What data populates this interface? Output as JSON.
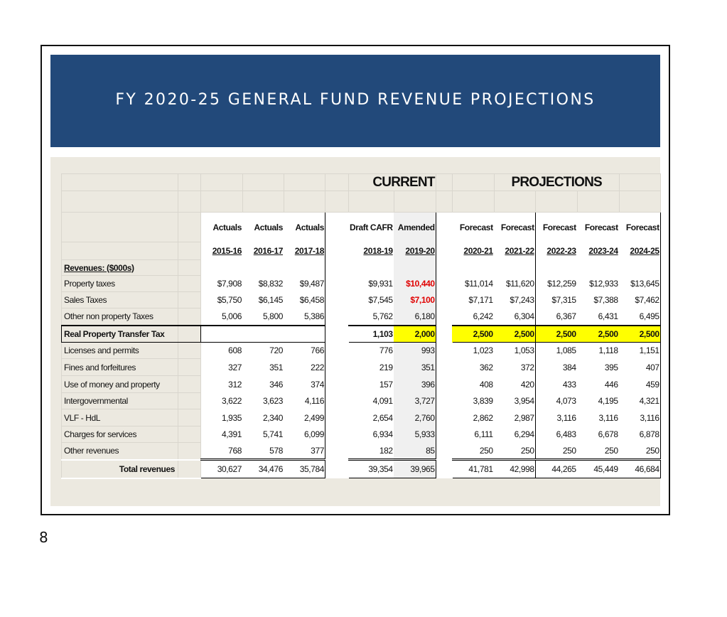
{
  "slide": {
    "title": "FY 2020-25 GENERAL FUND REVENUE PROJECTIONS",
    "page_number": "8"
  },
  "table": {
    "section_headers": {
      "current": "CURRENT",
      "projections": "PROJECTIONS"
    },
    "columns": [
      {
        "type": "Actuals",
        "year": "2015-16"
      },
      {
        "type": "Actuals",
        "year": "2016-17"
      },
      {
        "type": "Actuals",
        "year": "2017-18"
      },
      {
        "type": "Draft CAFR",
        "year": "2018-19"
      },
      {
        "type": "Amended",
        "year": "2019-20"
      },
      {
        "type": "Forecast",
        "year": "2020-21"
      },
      {
        "type": "Forecast",
        "year": "2021-22"
      },
      {
        "type": "Forecast",
        "year": "2022-23"
      },
      {
        "type": "Forecast",
        "year": "2023-24"
      },
      {
        "type": "Forecast",
        "year": "2024-25"
      }
    ],
    "section_label": "Revenues: ($000s)",
    "rows": [
      {
        "label": "Property taxes",
        "values": [
          "$7,908",
          "$8,832",
          "$9,487",
          "$9,931",
          "$10,440",
          "$11,014",
          "$11,620",
          "$12,259",
          "$12,933",
          "$13,645"
        ]
      },
      {
        "label": "Sales Taxes",
        "values": [
          "$5,750",
          "$6,145",
          "$6,458",
          "$7,545",
          "$7,100",
          "$7,171",
          "$7,243",
          "$7,315",
          "$7,388",
          "$7,462"
        ]
      },
      {
        "label": "Other non property Taxes",
        "values": [
          "5,006",
          "5,800",
          "5,386",
          "5,762",
          "6,180",
          "6,242",
          "6,304",
          "6,367",
          "6,431",
          "6,495"
        ]
      },
      {
        "label": "Real Property Transfer Tax",
        "values": [
          "",
          "",
          "",
          "1,103",
          "2,000",
          "2,500",
          "2,500",
          "2,500",
          "2,500",
          "2,500"
        ]
      },
      {
        "label": "Licenses and permits",
        "values": [
          "608",
          "720",
          "766",
          "776",
          "993",
          "1,023",
          "1,053",
          "1,085",
          "1,118",
          "1,151"
        ]
      },
      {
        "label": "Fines and forfeitures",
        "values": [
          "327",
          "351",
          "222",
          "219",
          "351",
          "362",
          "372",
          "384",
          "395",
          "407"
        ]
      },
      {
        "label": "Use of money and property",
        "values": [
          "312",
          "346",
          "374",
          "157",
          "396",
          "408",
          "420",
          "433",
          "446",
          "459"
        ]
      },
      {
        "label": "Intergovernmental",
        "values": [
          "3,622",
          "3,623",
          "4,116",
          "4,091",
          "3,727",
          "3,839",
          "3,954",
          "4,073",
          "4,195",
          "4,321"
        ]
      },
      {
        "label": "VLF - HdL",
        "values": [
          "1,935",
          "2,340",
          "2,499",
          "2,654",
          "2,760",
          "2,862",
          "2,987",
          "3,116",
          "3,116",
          "3,116"
        ]
      },
      {
        "label": "Charges for services",
        "values": [
          "4,391",
          "5,741",
          "6,099",
          "6,934",
          "5,933",
          "6,111",
          "6,294",
          "6,483",
          "6,678",
          "6,878"
        ]
      },
      {
        "label": "Other revenues",
        "values": [
          "768",
          "578",
          "377",
          "182",
          "85",
          "250",
          "250",
          "250",
          "250",
          "250"
        ]
      }
    ],
    "total": {
      "label": "Total revenues",
      "values": [
        "30,627",
        "34,476",
        "35,784",
        "39,354",
        "39,965",
        "41,781",
        "42,998",
        "44,265",
        "45,449",
        "46,684"
      ]
    },
    "colors": {
      "banner": "#22497a",
      "panel": "#ece9e0",
      "highlight": "#ffff00",
      "emphasis_red": "#e00000"
    }
  }
}
